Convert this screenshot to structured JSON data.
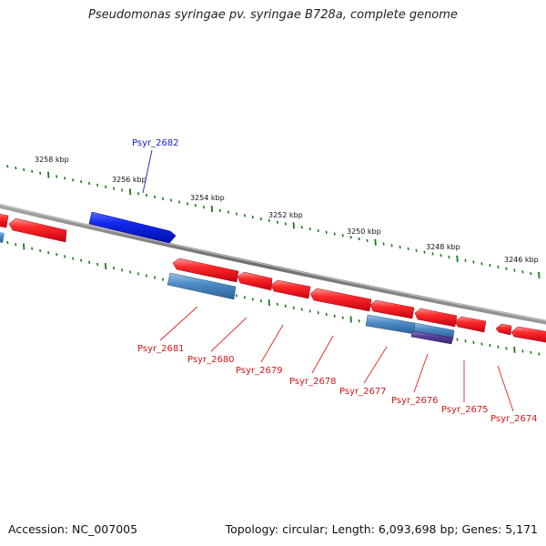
{
  "title": "Pseudomonas syringae pv. syringae B728a, complete genome",
  "footer": {
    "accession": "Accession: NC_007005",
    "summary": "Topology: circular; Length: 6,093,698 bp; Genes: 5,171"
  },
  "scale_labels": [
    "3258 kbp",
    "3256 kbp",
    "3254 kbp",
    "3252 kbp",
    "3250 kbp",
    "3248 kbp",
    "3246 kbp"
  ],
  "forward_genes": [
    {
      "name": "Psyr_2682",
      "color": "#0a1ee6"
    }
  ],
  "reverse_genes": [
    {
      "name": "Psyr_2681",
      "color": "#ee1c24"
    },
    {
      "name": "Psyr_2680",
      "color": "#ee1c24"
    },
    {
      "name": "Psyr_2679",
      "color": "#ee1c24"
    },
    {
      "name": "Psyr_2678",
      "color": "#ee1c24"
    },
    {
      "name": "Psyr_2677",
      "color": "#ee1c24"
    },
    {
      "name": "Psyr_2676",
      "color": "#ee1c24"
    },
    {
      "name": "Psyr_2675",
      "color": "#ee1c24"
    },
    {
      "name": "Psyr_2674",
      "color": "#ee1c24"
    }
  ],
  "colors": {
    "forward_gene": "#0a1ee6",
    "reverse_gene": "#ee1c24",
    "feature": "#3f7fbf",
    "feature_dark": "#5a3e9a",
    "backbone": "#7a7a7a",
    "ticks": "#1a7a1a"
  }
}
